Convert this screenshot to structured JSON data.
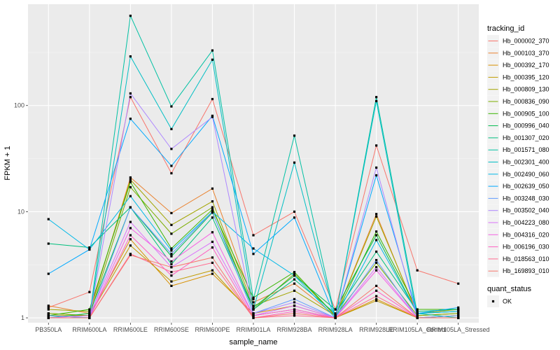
{
  "chart_data": {
    "type": "line",
    "title": "",
    "xlabel": "sample_name",
    "ylabel": "FPKM + 1",
    "y_scale": "log10",
    "ylim": [
      0.9,
      900
    ],
    "y_ticks": [
      1,
      10,
      100
    ],
    "y_tick_labels": [
      "1",
      "10",
      "100"
    ],
    "grid": true,
    "legend_placement": "right",
    "categories": [
      "PB350LA",
      "RRIM600LA",
      "RRIM600LE",
      "RRIM600SE",
      "RRIM600PE",
      "RRIM901LA",
      "RRIM928BA",
      "RRIM928LA",
      "RRIM928LE",
      "RRIM105LA_Control",
      "RRIM105LA_Stressed"
    ],
    "color_legend_title": "tracking_id",
    "shape_legend_title": "quant_status",
    "shape_legend_items": [
      "OK"
    ],
    "series": [
      {
        "name": "Hb_000002_370",
        "color": "#F8766D",
        "values": [
          1.25,
          1.75,
          120,
          23,
          115,
          6,
          10,
          1.2,
          42,
          2.8,
          2.1
        ]
      },
      {
        "name": "Hb_000103_370",
        "color": "#EA8331",
        "values": [
          1.3,
          1.1,
          21,
          9.7,
          16.5,
          1.4,
          2.1,
          1.05,
          9.5,
          1.05,
          1.1
        ]
      },
      {
        "name": "Hb_000392_170",
        "color": "#D89000",
        "values": [
          1.1,
          1.05,
          5.5,
          2.0,
          2.6,
          1.1,
          1.3,
          1.0,
          1.5,
          1.0,
          1.05
        ]
      },
      {
        "name": "Hb_000395_120",
        "color": "#C09B00",
        "values": [
          1.05,
          1.05,
          4.8,
          2.2,
          2.8,
          1.05,
          1.2,
          1.0,
          1.45,
          1.0,
          1.05
        ]
      },
      {
        "name": "Hb_000809_130",
        "color": "#A3A500",
        "values": [
          1.2,
          1.15,
          20,
          7.5,
          12.5,
          1.3,
          1.8,
          1.05,
          9.0,
          1.1,
          1.2
        ]
      },
      {
        "name": "Hb_000836_090",
        "color": "#7CAE00",
        "values": [
          1.1,
          1.05,
          17,
          6.2,
          11,
          1.2,
          2.6,
          1.05,
          3.3,
          1.05,
          1.1
        ]
      },
      {
        "name": "Hb_000905_100",
        "color": "#39B600",
        "values": [
          1.05,
          1.2,
          19,
          4.5,
          10.5,
          1.55,
          2.7,
          1.05,
          6.5,
          1.2,
          1.2
        ]
      },
      {
        "name": "Hb_000996_040",
        "color": "#00BB4E",
        "values": [
          1.0,
          1.1,
          11,
          3.8,
          9.8,
          1.25,
          2.5,
          1.2,
          6.0,
          1.1,
          1.15
        ]
      },
      {
        "name": "Hb_001307_020",
        "color": "#00BF7D",
        "values": [
          5.0,
          4.6,
          11,
          3.2,
          8.8,
          1.2,
          2.3,
          1.1,
          4.2,
          1.15,
          1.2
        ]
      },
      {
        "name": "Hb_001571_080",
        "color": "#00C1A3",
        "values": [
          1.05,
          1.0,
          700,
          98,
          330,
          1.5,
          52,
          1.0,
          120,
          1.1,
          1.0
        ]
      },
      {
        "name": "Hb_002301_400",
        "color": "#00BFC4",
        "values": [
          1.0,
          1.0,
          290,
          60,
          270,
          1.2,
          29,
          1.0,
          110,
          1.0,
          1.0
        ]
      },
      {
        "name": "Hb_002490_060",
        "color": "#00B8E7",
        "values": [
          8.5,
          4.4,
          14,
          4.3,
          10,
          4.5,
          2.5,
          1.0,
          5.4,
          1.1,
          1.15
        ]
      },
      {
        "name": "Hb_002639_050",
        "color": "#00A9FF",
        "values": [
          2.6,
          4.4,
          75,
          27,
          80,
          4.0,
          8.8,
          1.0,
          22,
          1.1,
          1.25
        ]
      },
      {
        "name": "Hb_003248_030",
        "color": "#619CFF",
        "values": [
          1.05,
          1.0,
          11,
          4.0,
          10,
          1.1,
          1.5,
          1.0,
          3.5,
          1.0,
          1.05
        ]
      },
      {
        "name": "Hb_003502_040",
        "color": "#AE87FF",
        "values": [
          1.0,
          1.0,
          130,
          39,
          78,
          1.1,
          1.4,
          1.0,
          26,
          1.0,
          1.0
        ]
      },
      {
        "name": "Hb_004223_080",
        "color": "#DB72FB",
        "values": [
          1.0,
          1.05,
          8,
          3.0,
          5.2,
          1.05,
          1.3,
          1.0,
          3.0,
          1.0,
          1.0
        ]
      },
      {
        "name": "Hb_004316_020",
        "color": "#F564E3",
        "values": [
          1.0,
          1.0,
          7,
          3.4,
          6.4,
          1.05,
          1.2,
          1.0,
          2.8,
          1.0,
          1.0
        ]
      },
      {
        "name": "Hb_006196_030",
        "color": "#FF61C3",
        "values": [
          1.0,
          1.0,
          6,
          2.5,
          4.6,
          1.0,
          1.15,
          1.0,
          1.8,
          1.0,
          1.0
        ]
      },
      {
        "name": "Hb_018563_010",
        "color": "#FF6C91",
        "values": [
          1.0,
          1.0,
          4.0,
          2.7,
          3.3,
          1.0,
          1.05,
          1.0,
          1.6,
          1.0,
          1.0
        ]
      },
      {
        "name": "Hb_169893_010",
        "color": "#F8766D",
        "values": [
          1.0,
          1.0,
          3.9,
          3.0,
          3.7,
          1.0,
          1.1,
          1.0,
          2.0,
          1.0,
          1.0
        ]
      }
    ]
  }
}
